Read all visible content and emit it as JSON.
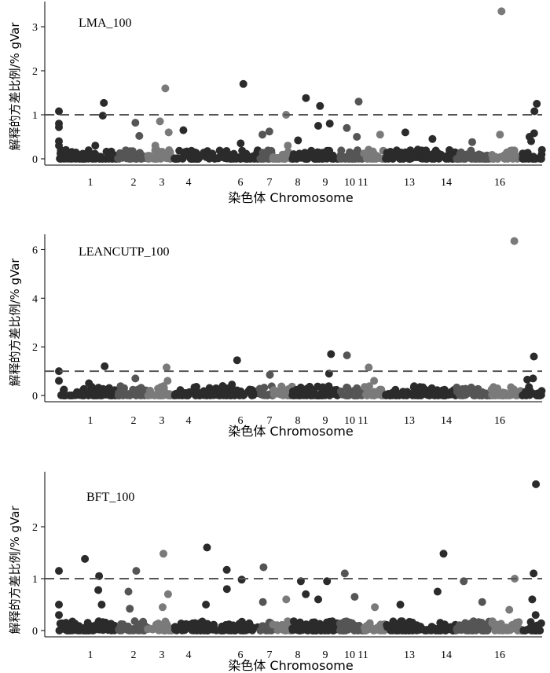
{
  "chart_data": [
    {
      "type": "scatter",
      "title": "LMA_100",
      "xlabel": "染色体 Chromosome",
      "ylabel": "解释的方差比例/% gVar",
      "ylim": [
        0,
        3.5
      ],
      "yticks": [
        0,
        1,
        2,
        3
      ],
      "threshold": 1,
      "xtick_labels": [
        "1",
        "2",
        "3",
        "4",
        "6",
        "7",
        "8",
        "9",
        "10",
        "11",
        "13",
        "14",
        "16"
      ],
      "highlights": [
        {
          "chr": 1,
          "y": 0.8
        },
        {
          "chr": 1,
          "y": 0.72
        },
        {
          "chr": 1,
          "y": 1.08
        },
        {
          "chr": 1,
          "y": 0.4
        },
        {
          "chr": 1,
          "y": 0.3
        },
        {
          "chr": 2,
          "y": 0.98
        },
        {
          "chr": 2,
          "y": 1.27
        },
        {
          "chr": 2,
          "y": 0.3
        },
        {
          "chr": 3,
          "y": 0.52
        },
        {
          "chr": 3,
          "y": 0.82
        },
        {
          "chr": 4,
          "y": 0.6
        },
        {
          "chr": 4,
          "y": 0.85
        },
        {
          "chr": 4,
          "y": 1.6
        },
        {
          "chr": 4,
          "y": 0.3
        },
        {
          "chr": 5,
          "y": 0.65
        },
        {
          "chr": 6,
          "y": 1.7
        },
        {
          "chr": 6,
          "y": 0.35
        },
        {
          "chr": 7,
          "y": 0.55
        },
        {
          "chr": 7,
          "y": 0.62
        },
        {
          "chr": 8,
          "y": 1.0
        },
        {
          "chr": 8,
          "y": 0.3
        },
        {
          "chr": 9,
          "y": 1.38
        },
        {
          "chr": 9,
          "y": 0.42
        },
        {
          "chr": 10,
          "y": 1.2
        },
        {
          "chr": 10,
          "y": 0.8
        },
        {
          "chr": 10,
          "y": 0.75
        },
        {
          "chr": 11,
          "y": 1.3
        },
        {
          "chr": 11,
          "y": 0.7
        },
        {
          "chr": 11,
          "y": 0.5
        },
        {
          "chr": 12,
          "y": 0.55
        },
        {
          "chr": 13,
          "y": 0.6
        },
        {
          "chr": 14,
          "y": 0.45
        },
        {
          "chr": 15,
          "y": 0.38
        },
        {
          "chr": 16,
          "y": 3.35
        },
        {
          "chr": 16,
          "y": 0.55
        },
        {
          "chr": 17,
          "y": 1.25
        },
        {
          "chr": 17,
          "y": 0.58
        },
        {
          "chr": 17,
          "y": 0.4
        },
        {
          "chr": 18,
          "y": 1.08
        },
        {
          "chr": 18,
          "y": 0.5
        }
      ]
    },
    {
      "type": "scatter",
      "title": "LEANCUTP_100",
      "xlabel": "染色体 Chromosome",
      "ylabel": "解释的方差比例/% gVar",
      "ylim": [
        0,
        6.5
      ],
      "yticks": [
        0,
        2,
        4,
        6
      ],
      "threshold": 1,
      "xtick_labels": [
        "1",
        "2",
        "3",
        "4",
        "6",
        "7",
        "8",
        "9",
        "10",
        "11",
        "13",
        "14",
        "16"
      ],
      "highlights": [
        {
          "chr": 1,
          "y": 1.0
        },
        {
          "chr": 1,
          "y": 0.6
        },
        {
          "chr": 2,
          "y": 1.2
        },
        {
          "chr": 2,
          "y": 0.5
        },
        {
          "chr": 3,
          "y": 0.7
        },
        {
          "chr": 4,
          "y": 1.15
        },
        {
          "chr": 4,
          "y": 0.6
        },
        {
          "chr": 6,
          "y": 1.45
        },
        {
          "chr": 6,
          "y": 0.45
        },
        {
          "chr": 7,
          "y": 0.85
        },
        {
          "chr": 10,
          "y": 1.7
        },
        {
          "chr": 10,
          "y": 0.9
        },
        {
          "chr": 11,
          "y": 1.65
        },
        {
          "chr": 12,
          "y": 1.15
        },
        {
          "chr": 12,
          "y": 0.6
        },
        {
          "chr": 16,
          "y": 6.35
        },
        {
          "chr": 17,
          "y": 1.6
        },
        {
          "chr": 17,
          "y": 0.65
        },
        {
          "chr": 18,
          "y": 0.7
        }
      ]
    },
    {
      "type": "scatter",
      "title": "BFT_100",
      "xlabel": "染色体 Chromosome",
      "ylabel": "解释的方差比例/% gVar",
      "ylim": [
        0,
        3.0
      ],
      "yticks": [
        0,
        1,
        2
      ],
      "threshold": 1,
      "xtick_labels": [
        "1",
        "2",
        "3",
        "4",
        "6",
        "7",
        "8",
        "9",
        "10",
        "11",
        "13",
        "14",
        "16"
      ],
      "highlights": [
        {
          "chr": 1,
          "y": 1.15
        },
        {
          "chr": 1,
          "y": 0.3
        },
        {
          "chr": 1,
          "y": 0.5
        },
        {
          "chr": 2,
          "y": 1.05
        },
        {
          "chr": 2,
          "y": 1.38
        },
        {
          "chr": 2,
          "y": 0.78
        },
        {
          "chr": 2,
          "y": 0.5
        },
        {
          "chr": 3,
          "y": 0.75
        },
        {
          "chr": 3,
          "y": 1.15
        },
        {
          "chr": 3,
          "y": 0.42
        },
        {
          "chr": 4,
          "y": 1.48
        },
        {
          "chr": 4,
          "y": 0.7
        },
        {
          "chr": 4,
          "y": 0.45
        },
        {
          "chr": 5,
          "y": 1.6
        },
        {
          "chr": 5,
          "y": 0.5
        },
        {
          "chr": 6,
          "y": 1.17
        },
        {
          "chr": 6,
          "y": 0.98
        },
        {
          "chr": 6,
          "y": 0.8
        },
        {
          "chr": 7,
          "y": 1.22
        },
        {
          "chr": 7,
          "y": 0.55
        },
        {
          "chr": 8,
          "y": 0.6
        },
        {
          "chr": 9,
          "y": 0.95
        },
        {
          "chr": 9,
          "y": 0.7
        },
        {
          "chr": 10,
          "y": 0.95
        },
        {
          "chr": 10,
          "y": 0.6
        },
        {
          "chr": 11,
          "y": 1.1
        },
        {
          "chr": 11,
          "y": 0.65
        },
        {
          "chr": 12,
          "y": 0.45
        },
        {
          "chr": 13,
          "y": 0.5
        },
        {
          "chr": 14,
          "y": 1.48
        },
        {
          "chr": 14,
          "y": 0.75
        },
        {
          "chr": 15,
          "y": 0.95
        },
        {
          "chr": 15,
          "y": 0.55
        },
        {
          "chr": 16,
          "y": 1.0
        },
        {
          "chr": 16,
          "y": 0.4
        },
        {
          "chr": 17,
          "y": 2.82
        },
        {
          "chr": 17,
          "y": 1.1
        },
        {
          "chr": 17,
          "y": 0.6
        },
        {
          "chr": 18,
          "y": 0.3
        }
      ]
    }
  ],
  "colors": {
    "dot_dark": "#2b2b2b",
    "dot_mid": "#555555",
    "dot_light": "#7a7a7a",
    "threshold_line": "#555555",
    "axis": "#000000"
  }
}
